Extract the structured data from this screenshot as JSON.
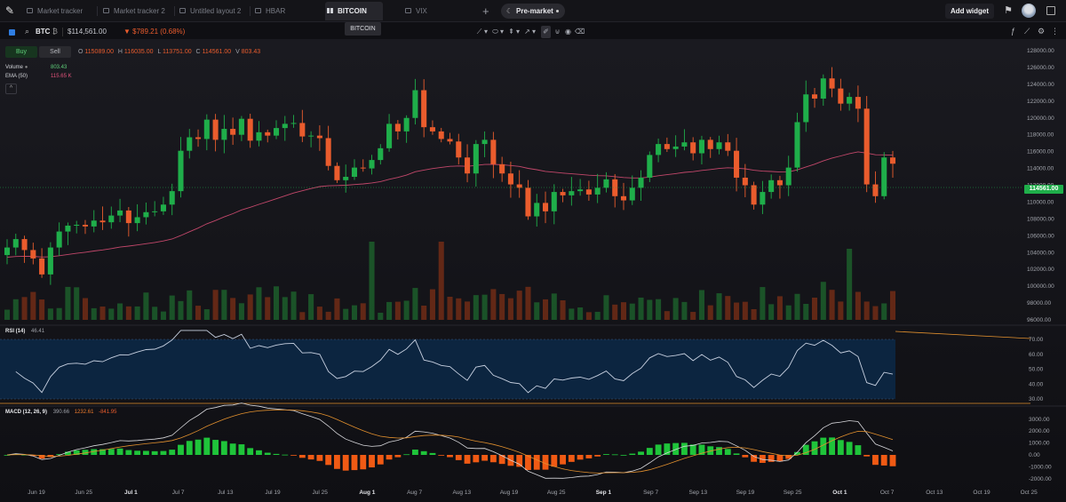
{
  "tabs": [
    {
      "label": "Market tracker",
      "active": false
    },
    {
      "label": "Market tracker 2",
      "active": false
    },
    {
      "label": "Untitled layout 2",
      "active": false
    },
    {
      "label": "HBAR",
      "active": false
    },
    {
      "label": "BITCOIN",
      "active": true
    },
    {
      "label": "VIX",
      "active": false
    }
  ],
  "tooltip": "BITCOIN",
  "session_pill": "Pre-market",
  "add_widget": "Add widget",
  "symbol": {
    "ticker": "BTC",
    "badge": "₿",
    "price": "$114,561.00",
    "change": "▼ $789.21 (0.68%)"
  },
  "buttons": {
    "buy": "Buy",
    "sell": "Sell"
  },
  "ohlc": {
    "O": "115089.00",
    "H": "116035.00",
    "L": "113751.00",
    "C": "114561.00",
    "V": "803.43"
  },
  "legend": {
    "volume_label": "Volume",
    "volume_value": "803.43",
    "ema_label": "EMA (50)",
    "ema_value": "115.65 K"
  },
  "rsi": {
    "label": "RSI (14)",
    "value": "46.41"
  },
  "macd": {
    "label": "MACD (12, 26, 9)",
    "macd": "390.66",
    "signal": "1232.61",
    "hist": "-841.95"
  },
  "last_price_tag": "114561.00",
  "colors": {
    "up": "#1fae4a",
    "down": "#ea5c2d",
    "ema": "#c2476a",
    "rsi_band": "#0c2540",
    "rsi_line": "#c7d0e0",
    "orange": "#e2902e"
  },
  "chart_data": {
    "type": "candlestick",
    "price_axis": [
      "128000.00",
      "126000.00",
      "124000.00",
      "122000.00",
      "120000.00",
      "118000.00",
      "116000.00",
      "114000.00",
      "112000.00",
      "110000.00",
      "108000.00",
      "106000.00",
      "104000.00",
      "102000.00",
      "100000.00",
      "98000.00",
      "96000.00"
    ],
    "rsi_axis": [
      "70.00",
      "60.00",
      "50.00",
      "40.00",
      "30.00"
    ],
    "macd_axis": [
      "3000.00",
      "2000.00",
      "1000.00",
      "0.00",
      "-1000.00",
      "-2000.00"
    ],
    "time_axis": [
      {
        "label": "Jun 19",
        "bold": false
      },
      {
        "label": "Jun 25",
        "bold": false
      },
      {
        "label": "Jul 1",
        "bold": true
      },
      {
        "label": "Jul 7",
        "bold": false
      },
      {
        "label": "Jul 13",
        "bold": false
      },
      {
        "label": "Jul 19",
        "bold": false
      },
      {
        "label": "Jul 25",
        "bold": false
      },
      {
        "label": "Aug 1",
        "bold": true
      },
      {
        "label": "Aug 7",
        "bold": false
      },
      {
        "label": "Aug 13",
        "bold": false
      },
      {
        "label": "Aug 19",
        "bold": false
      },
      {
        "label": "Aug 25",
        "bold": false
      },
      {
        "label": "Sep 1",
        "bold": true
      },
      {
        "label": "Sep 7",
        "bold": false
      },
      {
        "label": "Sep 13",
        "bold": false
      },
      {
        "label": "Sep 19",
        "bold": false
      },
      {
        "label": "Sep 25",
        "bold": false
      },
      {
        "label": "Oct 1",
        "bold": true
      },
      {
        "label": "Oct 7",
        "bold": false
      },
      {
        "label": "Oct 13",
        "bold": false
      },
      {
        "label": "Oct 19",
        "bold": false
      },
      {
        "label": "Oct 25",
        "bold": false
      }
    ],
    "closes": [
      104600,
      105600,
      104300,
      103300,
      101400,
      104600,
      106500,
      107200,
      107300,
      107100,
      107800,
      107600,
      108400,
      109000,
      107500,
      108200,
      108800,
      108900,
      109700,
      111300,
      116100,
      117700,
      117500,
      119800,
      117400,
      118700,
      118000,
      119900,
      117300,
      118300,
      117900,
      118800,
      119300,
      119400,
      117800,
      117900,
      117600,
      114300,
      112600,
      113000,
      114100,
      114000,
      115000,
      116400,
      119300,
      118400,
      120000,
      123300,
      118900,
      118400,
      117500,
      117200,
      115300,
      113400,
      116900,
      117400,
      114500,
      113400,
      112100,
      111700,
      108300,
      109900,
      108900,
      111200,
      110800,
      111300,
      111500,
      110900,
      111700,
      112700,
      110700,
      110200,
      111700,
      112900,
      115600,
      116900,
      116300,
      116600,
      117100,
      115800,
      117400,
      116300,
      117100,
      116100,
      112900,
      112000,
      109700,
      111200,
      112600,
      112000,
      114100,
      119500,
      122800,
      122300,
      124700,
      123500,
      121700,
      122500,
      121100,
      112100,
      110700,
      115300,
      114561
    ],
    "ema50_start": 103400,
    "ema50_end": 115650
  }
}
